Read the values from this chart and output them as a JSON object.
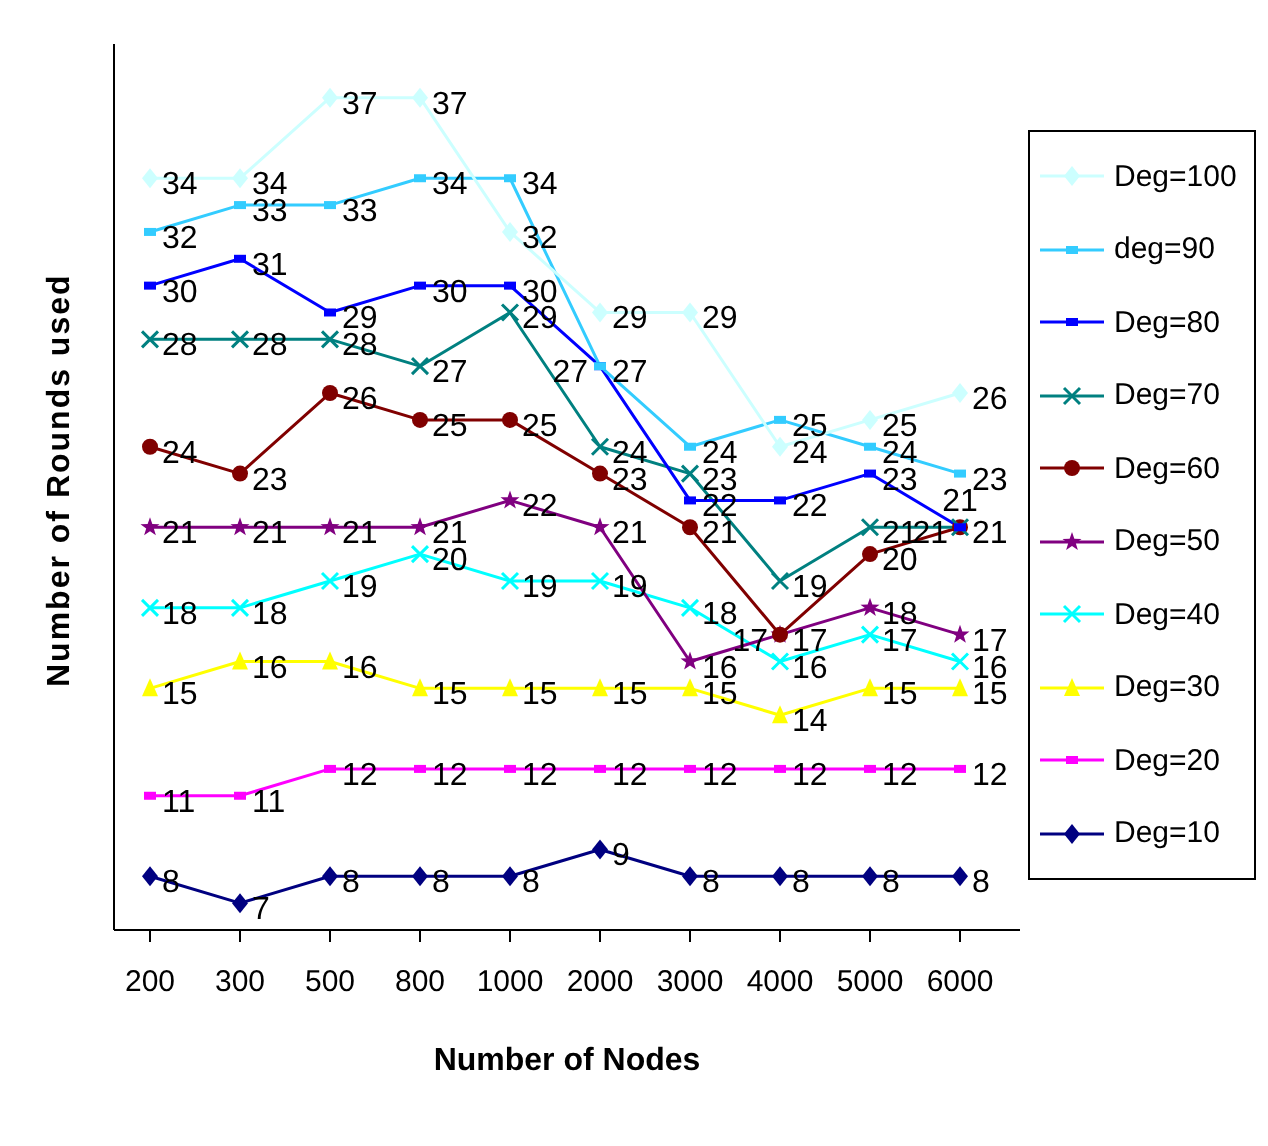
{
  "chart_data": {
    "type": "line",
    "xlabel": "Number of Nodes",
    "ylabel": "Number of Rounds used",
    "categories": [
      "200",
      "300",
      "500",
      "800",
      "1000",
      "2000",
      "3000",
      "4000",
      "5000",
      "6000"
    ],
    "ylim": [
      6,
      39
    ],
    "legend": "right",
    "data_labels": true,
    "tick_labels": "x",
    "series": [
      {
        "name": "Deg=10",
        "color": "#000080",
        "marker": "diamond",
        "values": [
          8,
          7,
          8,
          8,
          8,
          9,
          8,
          8,
          8,
          8
        ]
      },
      {
        "name": "Deg=20",
        "color": "#ff00ff",
        "marker": "square",
        "values": [
          11,
          11,
          12,
          12,
          12,
          12,
          12,
          12,
          12,
          12
        ]
      },
      {
        "name": "Deg=30",
        "color": "#ffff00",
        "marker": "triangle",
        "values": [
          15,
          16,
          16,
          15,
          15,
          15,
          15,
          14,
          15,
          15
        ]
      },
      {
        "name": "Deg=40",
        "color": "#00ffff",
        "marker": "cross",
        "values": [
          18,
          18,
          19,
          20,
          19,
          19,
          18,
          16,
          17,
          16
        ]
      },
      {
        "name": "Deg=50",
        "color": "#800080",
        "marker": "star",
        "values": [
          21,
          21,
          21,
          21,
          22,
          21,
          16,
          17,
          18,
          17
        ]
      },
      {
        "name": "Deg=60",
        "color": "#800000",
        "marker": "circle",
        "values": [
          24,
          23,
          26,
          25,
          25,
          23,
          21,
          17,
          20,
          21
        ]
      },
      {
        "name": "Deg=70",
        "color": "#008080",
        "marker": "cross",
        "values": [
          28,
          28,
          28,
          27,
          29,
          24,
          23,
          19,
          21,
          21
        ]
      },
      {
        "name": "Deg=80",
        "color": "#0000ff",
        "marker": "square",
        "values": [
          30,
          31,
          29,
          30,
          30,
          27,
          22,
          22,
          23,
          21
        ]
      },
      {
        "name": "deg=90",
        "color": "#33ccff",
        "marker": "square",
        "values": [
          32,
          33,
          33,
          34,
          34,
          27,
          24,
          25,
          24,
          23
        ]
      },
      {
        "name": "Deg=100",
        "color": "#ccffff",
        "marker": "diamond",
        "values": [
          34,
          34,
          37,
          37,
          32,
          29,
          29,
          24,
          25,
          26
        ]
      }
    ]
  }
}
